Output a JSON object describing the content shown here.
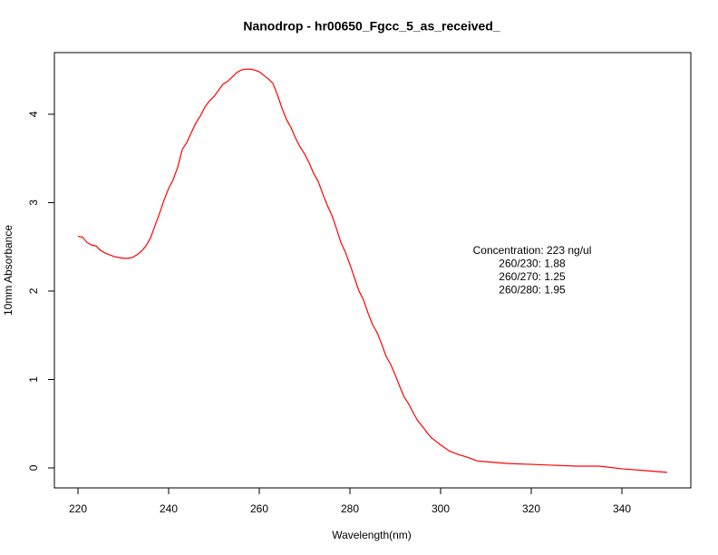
{
  "chart_data": {
    "type": "line",
    "title": "Nanodrop - hr00650_Fgcc_5_as_received_",
    "xlabel": "Wavelength(nm)",
    "ylabel": "10mm Absorbance",
    "annotations": [
      "Concentration: 223 ng/ul",
      "260/230: 1.88",
      "260/270: 1.25",
      "260/280: 1.95"
    ],
    "x": [
      220,
      221,
      222,
      223,
      224,
      225,
      226,
      228,
      230,
      231,
      232,
      233,
      234,
      235,
      236,
      237,
      238,
      239,
      240,
      241,
      242,
      243,
      244,
      245,
      246,
      247,
      248,
      249,
      250,
      251,
      252,
      253,
      254,
      255,
      256,
      257,
      258,
      259,
      260,
      261,
      262,
      263,
      264,
      265,
      266,
      267,
      268,
      269,
      270,
      271,
      272,
      273,
      274,
      275,
      276,
      277,
      278,
      279,
      280,
      281,
      282,
      283,
      284,
      285,
      286,
      287,
      288,
      289,
      290,
      291,
      292,
      293,
      294,
      295,
      296,
      297,
      298,
      299,
      300,
      302,
      304,
      306,
      308,
      310,
      315,
      320,
      325,
      330,
      335,
      340,
      345,
      350
    ],
    "values": [
      2.62,
      2.61,
      2.55,
      2.52,
      2.51,
      2.46,
      2.43,
      2.39,
      2.37,
      2.37,
      2.38,
      2.41,
      2.45,
      2.51,
      2.6,
      2.74,
      2.88,
      3.03,
      3.16,
      3.26,
      3.4,
      3.6,
      3.68,
      3.79,
      3.9,
      3.98,
      4.08,
      4.15,
      4.2,
      4.27,
      4.34,
      4.37,
      4.42,
      4.47,
      4.5,
      4.51,
      4.51,
      4.5,
      4.48,
      4.44,
      4.4,
      4.35,
      4.22,
      4.07,
      3.94,
      3.85,
      3.73,
      3.63,
      3.55,
      3.45,
      3.33,
      3.24,
      3.1,
      2.97,
      2.86,
      2.71,
      2.55,
      2.44,
      2.3,
      2.15,
      2.0,
      1.9,
      1.75,
      1.62,
      1.53,
      1.4,
      1.26,
      1.17,
      1.05,
      0.92,
      0.8,
      0.72,
      0.62,
      0.53,
      0.47,
      0.4,
      0.34,
      0.3,
      0.26,
      0.19,
      0.15,
      0.12,
      0.08,
      0.07,
      0.05,
      0.04,
      0.03,
      0.02,
      0.02,
      -0.01,
      -0.03,
      -0.05
    ],
    "color": "#ff0000",
    "xlim": [
      214.8,
      355.2
    ],
    "xticks": [
      220,
      240,
      260,
      280,
      300,
      320,
      340
    ],
    "ylim": [
      -0.226,
      4.697
    ],
    "yticks": [
      0,
      1,
      2,
      3,
      4
    ],
    "grid": false
  }
}
